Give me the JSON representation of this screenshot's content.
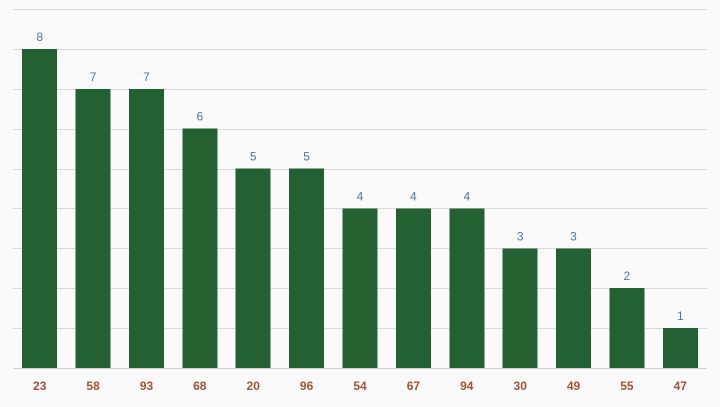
{
  "chart_data": {
    "type": "bar",
    "categories": [
      "23",
      "58",
      "93",
      "68",
      "20",
      "96",
      "54",
      "67",
      "94",
      "30",
      "49",
      "55",
      "47"
    ],
    "values": [
      8,
      7,
      7,
      6,
      5,
      5,
      4,
      4,
      4,
      3,
      3,
      2,
      1
    ],
    "title": "",
    "xlabel": "",
    "ylabel": "",
    "ylim": [
      0,
      9
    ],
    "grid": true,
    "legend": "none",
    "data_labels": true,
    "colors": {
      "bar": "#236133",
      "value_label": "#5a7592",
      "category_label": "#a0543a",
      "grid": "#d9d9d9",
      "background": "#fafafa"
    }
  }
}
